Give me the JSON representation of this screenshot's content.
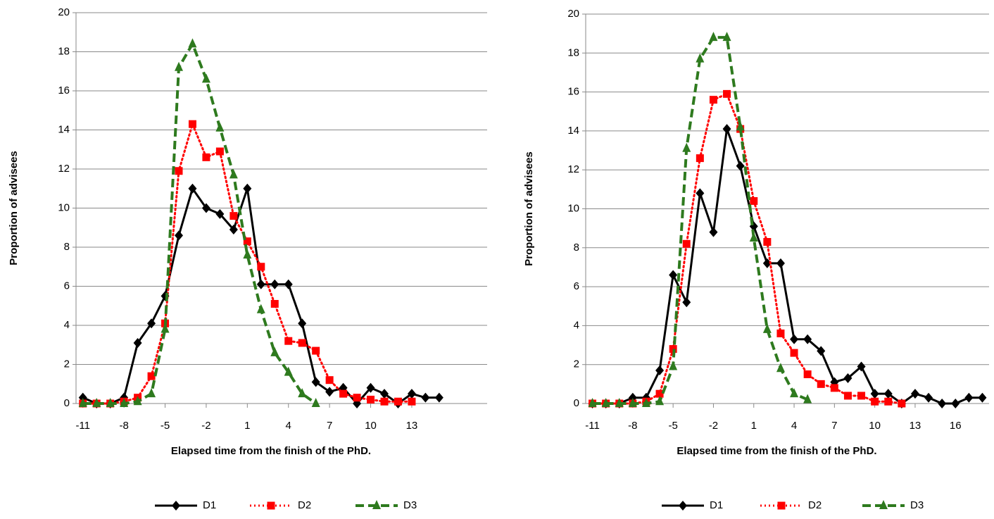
{
  "chart_data": [
    {
      "type": "line",
      "x_label": "Elapsed  time from the finish of the PhD.",
      "y_label": "Proportion of advisees",
      "xlim": [
        -11.5,
        18.5
      ],
      "xticks": [
        -11,
        -8,
        -5,
        -2,
        1,
        4,
        7,
        10,
        13
      ],
      "ylim": [
        0,
        20
      ],
      "yticks": [
        0,
        2,
        4,
        6,
        8,
        10,
        12,
        14,
        16,
        18,
        20
      ],
      "grid": true,
      "legend": "bottom",
      "series": [
        {
          "name": "D1",
          "color": "#000000",
          "marker": "diamond",
          "dash": "solid",
          "x": [
            -11,
            -10,
            -9,
            -8,
            -7,
            -6,
            -5,
            -4,
            -3,
            -2,
            -1,
            0,
            1,
            2,
            3,
            4,
            5,
            6,
            7,
            8,
            9,
            10,
            11,
            12,
            13,
            14,
            15
          ],
          "values": [
            0.3,
            0,
            0,
            0.3,
            3.1,
            4.1,
            5.5,
            8.6,
            11.0,
            10.0,
            9.7,
            8.9,
            11.0,
            6.1,
            6.1,
            6.1,
            4.1,
            1.1,
            0.6,
            0.8,
            0,
            0.8,
            0.5,
            0,
            0.5,
            0.3,
            0.3
          ]
        },
        {
          "name": "D2",
          "color": "#ff0000",
          "marker": "square",
          "dash": "dotted",
          "x": [
            -11,
            -10,
            -9,
            -8,
            -7,
            -6,
            -5,
            -4,
            -3,
            -2,
            -1,
            0,
            1,
            2,
            3,
            4,
            5,
            6,
            7,
            8,
            9,
            10,
            11,
            12,
            13
          ],
          "values": [
            0,
            0,
            0,
            0.1,
            0.3,
            1.4,
            4.1,
            11.9,
            14.3,
            12.6,
            12.9,
            9.6,
            8.3,
            7.0,
            5.1,
            3.2,
            3.1,
            2.7,
            1.2,
            0.5,
            0.3,
            0.2,
            0.1,
            0.1,
            0.1
          ]
        },
        {
          "name": "D3",
          "color": "#2e7a1e",
          "marker": "triangle",
          "dash": "dashed",
          "x": [
            -11,
            -10,
            -9,
            -8,
            -7,
            -6,
            -5,
            -4,
            -3,
            -2,
            -1,
            0,
            1,
            2,
            3,
            4,
            5,
            6
          ],
          "values": [
            0,
            0,
            0,
            0,
            0.1,
            0.5,
            3.8,
            17.2,
            18.4,
            16.6,
            14.1,
            11.7,
            7.6,
            4.8,
            2.6,
            1.6,
            0.5,
            0
          ]
        }
      ]
    },
    {
      "type": "line",
      "x_label": "Elapsed  time from the finish of the PhD.",
      "y_label": "Proportion of advisees",
      "xlim": [
        -11.5,
        18.5
      ],
      "xticks": [
        -11,
        -8,
        -5,
        -2,
        1,
        4,
        7,
        10,
        13,
        16
      ],
      "ylim": [
        0,
        20
      ],
      "yticks": [
        0,
        2,
        4,
        6,
        8,
        10,
        12,
        14,
        16,
        18,
        20
      ],
      "grid": true,
      "legend": "bottom",
      "series": [
        {
          "name": "D1",
          "color": "#000000",
          "marker": "diamond",
          "dash": "solid",
          "x": [
            -11,
            -10,
            -9,
            -8,
            -7,
            -6,
            -5,
            -4,
            -3,
            -2,
            -1,
            0,
            1,
            2,
            3,
            4,
            5,
            6,
            7,
            8,
            9,
            10,
            11,
            12,
            13,
            14,
            15,
            16,
            17,
            18
          ],
          "values": [
            0,
            0,
            0,
            0.3,
            0.3,
            1.7,
            6.6,
            5.2,
            10.8,
            8.8,
            14.1,
            12.2,
            9.1,
            7.2,
            7.2,
            3.3,
            3.3,
            2.7,
            1.1,
            1.3,
            1.9,
            0.5,
            0.5,
            0,
            0.5,
            0.3,
            0,
            0,
            0.3,
            0.3
          ]
        },
        {
          "name": "D2",
          "color": "#ff0000",
          "marker": "square",
          "dash": "dotted",
          "x": [
            -11,
            -10,
            -9,
            -8,
            -7,
            -6,
            -5,
            -4,
            -3,
            -2,
            -1,
            0,
            1,
            2,
            3,
            4,
            5,
            6,
            7,
            8,
            9,
            10,
            11,
            12
          ],
          "values": [
            0,
            0,
            0,
            0,
            0.1,
            0.5,
            2.8,
            8.2,
            12.6,
            15.6,
            15.9,
            14.1,
            10.4,
            8.3,
            3.6,
            2.6,
            1.5,
            1.0,
            0.8,
            0.4,
            0.4,
            0.1,
            0.1,
            0
          ]
        },
        {
          "name": "D3",
          "color": "#2e7a1e",
          "marker": "triangle",
          "dash": "dashed",
          "x": [
            -11,
            -10,
            -9,
            -8,
            -7,
            -6,
            -5,
            -4,
            -3,
            -2,
            -1,
            0,
            1,
            2,
            3,
            4,
            5
          ],
          "values": [
            0,
            0,
            0,
            0,
            0,
            0.1,
            1.9,
            13.1,
            17.7,
            18.8,
            18.8,
            14.2,
            8.5,
            3.8,
            1.8,
            0.5,
            0.2
          ]
        }
      ]
    }
  ]
}
